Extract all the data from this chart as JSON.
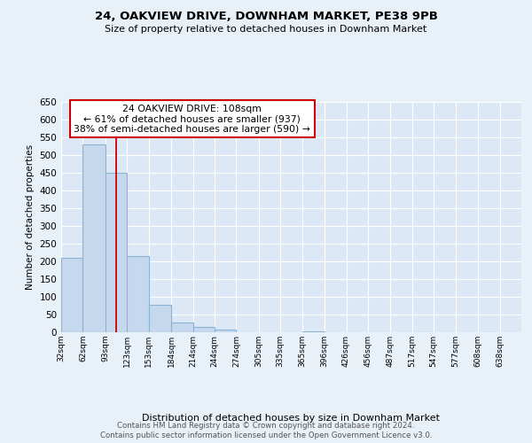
{
  "title1": "24, OAKVIEW DRIVE, DOWNHAM MARKET, PE38 9PB",
  "title2": "Size of property relative to detached houses in Downham Market",
  "xlabel": "Distribution of detached houses by size in Downham Market",
  "ylabel": "Number of detached properties",
  "footer1": "Contains HM Land Registry data © Crown copyright and database right 2024.",
  "footer2": "Contains public sector information licensed under the Open Government Licence v3.0.",
  "bin_labels": [
    "32sqm",
    "62sqm",
    "93sqm",
    "123sqm",
    "153sqm",
    "184sqm",
    "214sqm",
    "244sqm",
    "274sqm",
    "305sqm",
    "335sqm",
    "365sqm",
    "396sqm",
    "426sqm",
    "456sqm",
    "487sqm",
    "517sqm",
    "547sqm",
    "577sqm",
    "608sqm",
    "638sqm"
  ],
  "bar_values": [
    210,
    530,
    450,
    215,
    78,
    28,
    15,
    8,
    0,
    0,
    0,
    3,
    0,
    0,
    0,
    0,
    1,
    0,
    0,
    1,
    0
  ],
  "bar_color": "#c5d8ee",
  "bar_edgecolor": "#8ab4d4",
  "property_line_value": 108,
  "property_line_label": "24 OAKVIEW DRIVE: 108sqm",
  "annotation_line1": "← 61% of detached houses are smaller (937)",
  "annotation_line2": "38% of semi-detached houses are larger (590) →",
  "annotation_box_color": "#cc0000",
  "ylim": [
    0,
    650
  ],
  "yticks": [
    0,
    50,
    100,
    150,
    200,
    250,
    300,
    350,
    400,
    450,
    500,
    550,
    600,
    650
  ],
  "bin_edges": [
    32,
    62,
    93,
    123,
    153,
    184,
    214,
    244,
    274,
    305,
    335,
    365,
    396,
    426,
    456,
    487,
    517,
    547,
    577,
    608,
    638,
    668
  ],
  "background_color": "#e8f0f8",
  "plot_bg_color": "#dce8f5"
}
